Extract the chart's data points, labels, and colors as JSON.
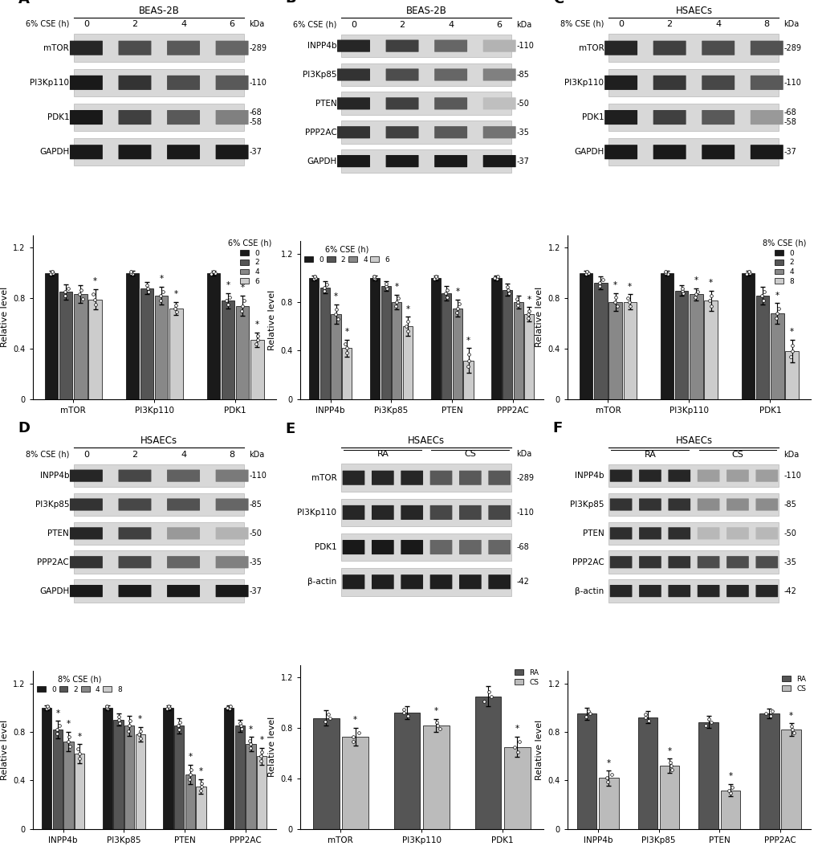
{
  "panels": {
    "A": {
      "label": "A",
      "cell_line": "BEAS-2B",
      "treatment": "6% CSE (h)",
      "time_points": [
        "0",
        "2",
        "4",
        "6"
      ],
      "proteins": [
        "mTOR",
        "PI3Kp110",
        "PDK1",
        "GAPDH"
      ],
      "kda": [
        "-289",
        "-110",
        "-68\n-58",
        "-37"
      ],
      "bar_categories": [
        "mTOR",
        "PI3Kp110",
        "PDK1"
      ],
      "legend_title": "6% CSE (h)",
      "legend_items": [
        "0",
        "2",
        "4",
        "6"
      ],
      "bar_colors": [
        "#1a1a1a",
        "#555555",
        "#888888",
        "#cccccc"
      ],
      "bar_data": {
        "mTOR": [
          1.0,
          0.85,
          0.83,
          0.79
        ],
        "PI3Kp110": [
          1.0,
          0.88,
          0.82,
          0.72
        ],
        "PDK1": [
          1.0,
          0.78,
          0.74,
          0.47
        ]
      },
      "error_data": {
        "mTOR": [
          0.02,
          0.06,
          0.07,
          0.08
        ],
        "PI3Kp110": [
          0.02,
          0.05,
          0.07,
          0.05
        ],
        "PDK1": [
          0.02,
          0.06,
          0.08,
          0.06
        ]
      },
      "sig": {
        "mTOR": [
          false,
          false,
          false,
          true
        ],
        "PI3Kp110": [
          false,
          false,
          true,
          true
        ],
        "PDK1": [
          false,
          true,
          true,
          true
        ]
      },
      "ylim": [
        0,
        1.3
      ],
      "yticks": [
        0,
        0.4,
        0.8,
        1.2
      ],
      "ylabel": "Relative level",
      "legend_loc": "upper right",
      "legend_ncol": 1
    },
    "B": {
      "label": "B",
      "cell_line": "BEAS-2B",
      "treatment": "6% CSE (h)",
      "time_points": [
        "0",
        "2",
        "4",
        "6"
      ],
      "proteins": [
        "INPP4b",
        "PI3Kp85",
        "PTEN",
        "PPP2AC",
        "GAPDH"
      ],
      "kda": [
        "-110",
        "-85",
        "-50",
        "-35",
        "-37"
      ],
      "bar_categories": [
        "INPP4b",
        "Pi3Kp85",
        "PTEN",
        "PPP2AC"
      ],
      "legend_title": "6% CSE (h)",
      "legend_items": [
        "0",
        "2",
        "4",
        "6"
      ],
      "bar_colors": [
        "#1a1a1a",
        "#555555",
        "#888888",
        "#cccccc"
      ],
      "bar_data": {
        "INPP4b": [
          1.0,
          0.92,
          0.7,
          0.42
        ],
        "Pi3Kp85": [
          1.0,
          0.93,
          0.8,
          0.6
        ],
        "PTEN": [
          1.0,
          0.87,
          0.75,
          0.32
        ],
        "PPP2AC": [
          1.0,
          0.9,
          0.8,
          0.7
        ]
      },
      "error_data": {
        "INPP4b": [
          0.02,
          0.05,
          0.08,
          0.07
        ],
        "Pi3Kp85": [
          0.02,
          0.04,
          0.06,
          0.08
        ],
        "PTEN": [
          0.02,
          0.06,
          0.07,
          0.1
        ],
        "PPP2AC": [
          0.02,
          0.05,
          0.05,
          0.06
        ]
      },
      "sig": {
        "INPP4b": [
          false,
          false,
          true,
          true
        ],
        "Pi3Kp85": [
          false,
          false,
          true,
          true
        ],
        "PTEN": [
          false,
          false,
          true,
          true
        ],
        "PPP2AC": [
          false,
          false,
          false,
          true
        ]
      },
      "ylim": [
        0,
        1.3
      ],
      "yticks": [
        0,
        0.4,
        0.8,
        1.2
      ],
      "ylabel": "Relative level",
      "legend_loc": "upper left",
      "legend_ncol": 5
    },
    "C": {
      "label": "C",
      "cell_line": "HSAECs",
      "treatment": "8% CSE (h)",
      "time_points": [
        "0",
        "2",
        "4",
        "8"
      ],
      "proteins": [
        "mTOR",
        "PI3Kp110",
        "PDK1",
        "GAPDH"
      ],
      "kda": [
        "-289",
        "-110",
        "-68\n-58",
        "-37"
      ],
      "bar_categories": [
        "mTOR",
        "PI3Kp110",
        "PDK1"
      ],
      "legend_title": "8% CSE (h)",
      "legend_items": [
        "0",
        "2",
        "4",
        "8"
      ],
      "bar_colors": [
        "#1a1a1a",
        "#555555",
        "#888888",
        "#cccccc"
      ],
      "bar_data": {
        "mTOR": [
          1.0,
          0.92,
          0.77,
          0.77
        ],
        "PI3Kp110": [
          1.0,
          0.86,
          0.83,
          0.78
        ],
        "PDK1": [
          1.0,
          0.82,
          0.68,
          0.38
        ]
      },
      "error_data": {
        "mTOR": [
          0.02,
          0.05,
          0.07,
          0.06
        ],
        "PI3Kp110": [
          0.02,
          0.04,
          0.05,
          0.08
        ],
        "PDK1": [
          0.02,
          0.07,
          0.08,
          0.09
        ]
      },
      "sig": {
        "mTOR": [
          false,
          false,
          true,
          true
        ],
        "PI3Kp110": [
          false,
          false,
          true,
          true
        ],
        "PDK1": [
          false,
          false,
          true,
          true
        ]
      },
      "ylim": [
        0,
        1.3
      ],
      "yticks": [
        0,
        0.4,
        0.8,
        1.2
      ],
      "ylabel": "Relative level",
      "legend_loc": "upper right",
      "legend_ncol": 1
    },
    "D": {
      "label": "D",
      "cell_line": "HSAECs",
      "treatment": "8% CSE (h)",
      "time_points": [
        "0",
        "2",
        "4",
        "8"
      ],
      "proteins": [
        "INPP4b",
        "PI3Kp85",
        "PTEN",
        "PPP2AC",
        "GAPDH"
      ],
      "kda": [
        "-110",
        "-85",
        "-50",
        "-35",
        "-37"
      ],
      "bar_categories": [
        "INPP4b",
        "PI3Kp85",
        "PTEN",
        "PPP2AC"
      ],
      "legend_title": "8% CSE (h)",
      "legend_items": [
        "0",
        "2",
        "4",
        "8"
      ],
      "bar_colors": [
        "#1a1a1a",
        "#555555",
        "#888888",
        "#cccccc"
      ],
      "bar_data": {
        "INPP4b": [
          1.0,
          0.82,
          0.72,
          0.62
        ],
        "PI3Kp85": [
          1.0,
          0.9,
          0.85,
          0.78
        ],
        "PTEN": [
          1.0,
          0.85,
          0.45,
          0.35
        ],
        "PPP2AC": [
          1.0,
          0.85,
          0.7,
          0.6
        ]
      },
      "error_data": {
        "INPP4b": [
          0.02,
          0.07,
          0.08,
          0.08
        ],
        "PI3Kp85": [
          0.02,
          0.05,
          0.08,
          0.06
        ],
        "PTEN": [
          0.02,
          0.06,
          0.08,
          0.06
        ],
        "PPP2AC": [
          0.02,
          0.05,
          0.06,
          0.07
        ]
      },
      "sig": {
        "INPP4b": [
          false,
          true,
          true,
          true
        ],
        "PI3Kp85": [
          false,
          false,
          false,
          true
        ],
        "PTEN": [
          false,
          false,
          true,
          true
        ],
        "PPP2AC": [
          false,
          false,
          true,
          true
        ]
      },
      "ylim": [
        0,
        1.3
      ],
      "yticks": [
        0,
        0.4,
        0.8,
        1.2
      ],
      "ylabel": "Relative level",
      "legend_loc": "upper left",
      "legend_ncol": 5
    },
    "E": {
      "label": "E",
      "cell_line": "HSAECs",
      "treatment": "RA/CS",
      "time_points": [
        "RA",
        "RA",
        "RA",
        "CS",
        "CS",
        "CS"
      ],
      "lane_labels": [
        "RA",
        "CS"
      ],
      "proteins": [
        "mTOR",
        "PI3Kp110",
        "PDK1",
        "β-actin"
      ],
      "kda": [
        "-289",
        "-110",
        "-68",
        "-42"
      ],
      "bar_categories": [
        "mTOR",
        "PI3Kp110",
        "PDK1"
      ],
      "legend_title": "",
      "legend_items": [
        "RA",
        "CS"
      ],
      "bar_colors": [
        "#555555",
        "#bbbbbb"
      ],
      "bar_data": {
        "mTOR": [
          0.88,
          0.73
        ],
        "PI3Kp110": [
          0.92,
          0.82
        ],
        "PDK1": [
          1.05,
          0.65
        ]
      },
      "error_data": {
        "mTOR": [
          0.06,
          0.07
        ],
        "PI3Kp110": [
          0.05,
          0.05
        ],
        "PDK1": [
          0.08,
          0.08
        ]
      },
      "sig": {
        "mTOR": [
          false,
          true
        ],
        "PI3Kp110": [
          false,
          true
        ],
        "PDK1": [
          false,
          true
        ]
      },
      "ylim": [
        0,
        1.3
      ],
      "yticks": [
        0,
        0.4,
        0.8,
        1.2
      ],
      "ylabel": "Relative level",
      "legend_loc": "upper right",
      "legend_ncol": 1
    },
    "F": {
      "label": "F",
      "cell_line": "HSAECs",
      "treatment": "RA/CS",
      "time_points": [
        "RA",
        "RA",
        "RA",
        "CS",
        "CS",
        "CS"
      ],
      "lane_labels": [
        "RA",
        "CS"
      ],
      "proteins": [
        "INPP4b",
        "PI3Kp85",
        "PTEN",
        "PPP2AC",
        "β-actin"
      ],
      "kda": [
        "-110",
        "-85",
        "-50",
        "-35",
        "-42"
      ],
      "bar_categories": [
        "INPP4b",
        "PI3Kp85",
        "PTEN",
        "PPP2AC"
      ],
      "legend_title": "",
      "legend_items": [
        "RA",
        "CS"
      ],
      "bar_colors": [
        "#555555",
        "#bbbbbb"
      ],
      "bar_data": {
        "INPP4b": [
          0.95,
          0.42
        ],
        "PI3Kp85": [
          0.92,
          0.52
        ],
        "PTEN": [
          0.88,
          0.32
        ],
        "PPP2AC": [
          0.95,
          0.82
        ]
      },
      "error_data": {
        "INPP4b": [
          0.05,
          0.06
        ],
        "PI3Kp85": [
          0.05,
          0.06
        ],
        "PTEN": [
          0.05,
          0.05
        ],
        "PPP2AC": [
          0.04,
          0.05
        ]
      },
      "sig": {
        "INPP4b": [
          false,
          true
        ],
        "PI3Kp85": [
          false,
          true
        ],
        "PTEN": [
          false,
          true
        ],
        "PPP2AC": [
          false,
          true
        ]
      },
      "ylim": [
        0,
        1.3
      ],
      "yticks": [
        0,
        0.4,
        0.8,
        1.2
      ],
      "ylabel": "Relative level",
      "legend_loc": "upper right",
      "legend_ncol": 1
    }
  },
  "background_color": "#ffffff"
}
